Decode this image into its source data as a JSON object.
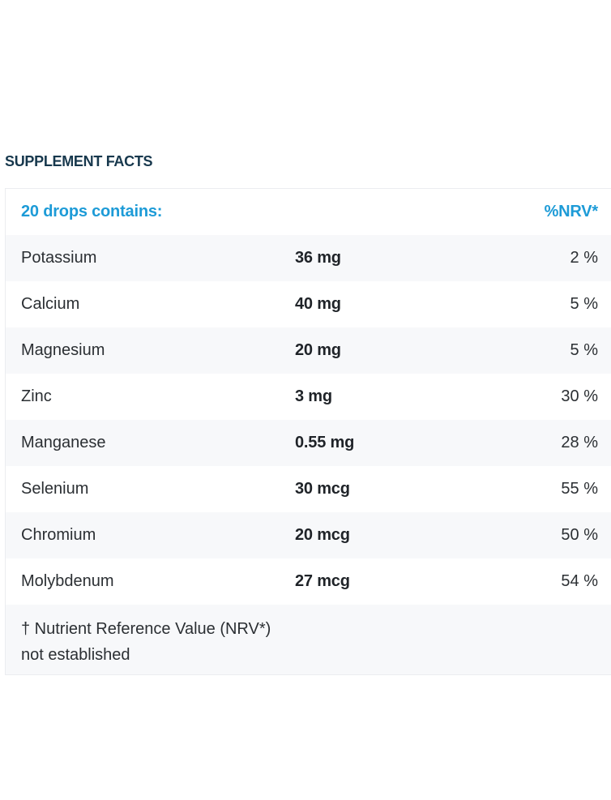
{
  "section_title": "SUPPLEMENT FACTS",
  "table": {
    "header_label": "20 drops contains:",
    "header_nrv": "%NRV*",
    "rows": [
      {
        "name": "Potassium",
        "amount": "36 mg",
        "nrv": "2 %"
      },
      {
        "name": "Calcium",
        "amount": "40 mg",
        "nrv": "5 %"
      },
      {
        "name": "Magnesium",
        "amount": "20 mg",
        "nrv": "5 %"
      },
      {
        "name": "Zinc",
        "amount": "3 mg",
        "nrv": "30 %"
      },
      {
        "name": "Manganese",
        "amount": "0.55 mg",
        "nrv": "28 %"
      },
      {
        "name": "Selenium",
        "amount": "30 mcg",
        "nrv": "55 %"
      },
      {
        "name": "Chromium",
        "amount": "20 mcg",
        "nrv": "50 %"
      },
      {
        "name": "Molybdenum",
        "amount": "27 mcg",
        "nrv": "54 %"
      }
    ],
    "footnote_line1": "† Nutrient Reference Value (NRV*)",
    "footnote_line2": "not established"
  },
  "colors": {
    "title": "#17384d",
    "accent": "#1d9bd7",
    "stripe": "#f7f8fa"
  }
}
